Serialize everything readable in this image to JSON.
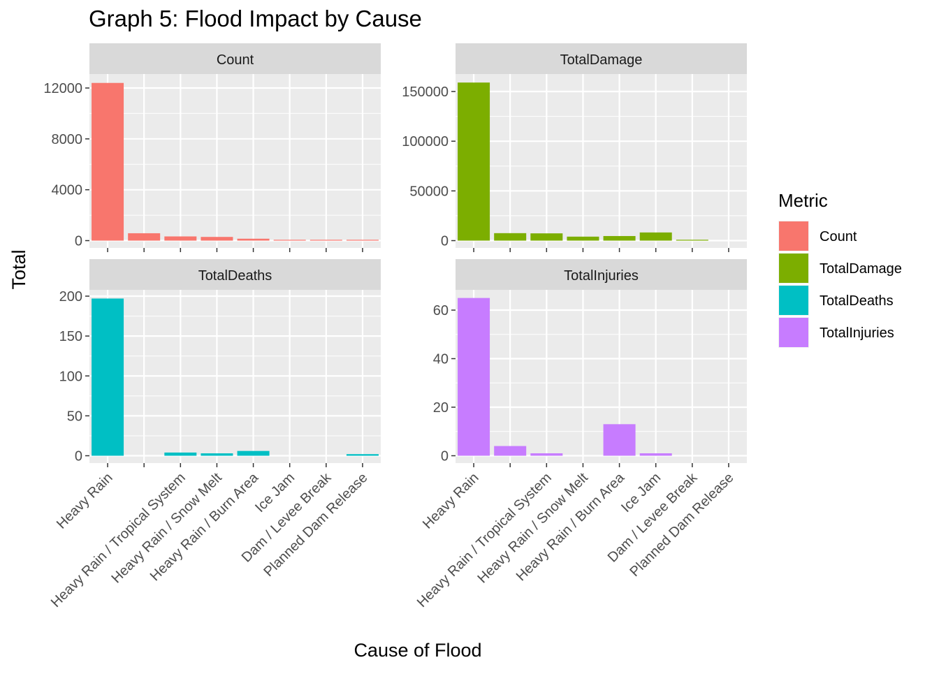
{
  "chart_data": {
    "type": "bar",
    "title": "Graph 5: Flood Impact by Cause",
    "xlabel": "Cause of Flood",
    "ylabel": "Total",
    "categories": [
      "Heavy Rain",
      "",
      "Heavy Rain / Tropical System",
      "Heavy Rain / Snow Melt",
      "Heavy Rain / Burn Area",
      "Ice Jam",
      "Dam / Levee Break",
      "Planned Dam Release"
    ],
    "legend": {
      "title": "Metric",
      "position": "right",
      "entries": [
        {
          "name": "Count",
          "color": "#F8766D"
        },
        {
          "name": "TotalDamage",
          "color": "#7CAE00"
        },
        {
          "name": "TotalDeaths",
          "color": "#00BFC4"
        },
        {
          "name": "TotalInjuries",
          "color": "#C77CFF"
        }
      ]
    },
    "grid": true,
    "facets": [
      {
        "name": "Count",
        "color": "#F8766D",
        "ylim": [
          0,
          13000
        ],
        "yticks": [
          0,
          4000,
          8000,
          12000
        ],
        "tick_labels": [
          "0",
          "4000",
          "8000",
          "12000"
        ],
        "values": [
          12400,
          580,
          330,
          290,
          150,
          40,
          25,
          5
        ]
      },
      {
        "name": "TotalDamage",
        "color": "#7CAE00",
        "ylim": [
          0,
          160000
        ],
        "yticks": [
          0,
          50000,
          100000,
          150000
        ],
        "tick_labels": [
          "0",
          "50000",
          "100000",
          "150000"
        ],
        "values": [
          159000,
          7500,
          7300,
          4000,
          4600,
          8200,
          800,
          0
        ]
      },
      {
        "name": "TotalDeaths",
        "color": "#00BFC4",
        "ylim": [
          0,
          200
        ],
        "yticks": [
          0,
          50,
          100,
          150,
          200
        ],
        "tick_labels": [
          "0",
          "50",
          "100",
          "150",
          "200"
        ],
        "values": [
          197,
          0,
          4,
          3,
          6,
          0,
          0,
          2
        ]
      },
      {
        "name": "TotalInjuries",
        "color": "#C77CFF",
        "ylim": [
          0,
          65
        ],
        "yticks": [
          0,
          20,
          40,
          60
        ],
        "tick_labels": [
          "0",
          "20",
          "40",
          "60"
        ],
        "values": [
          65,
          4,
          1,
          0,
          13,
          1,
          0,
          0
        ]
      }
    ]
  }
}
